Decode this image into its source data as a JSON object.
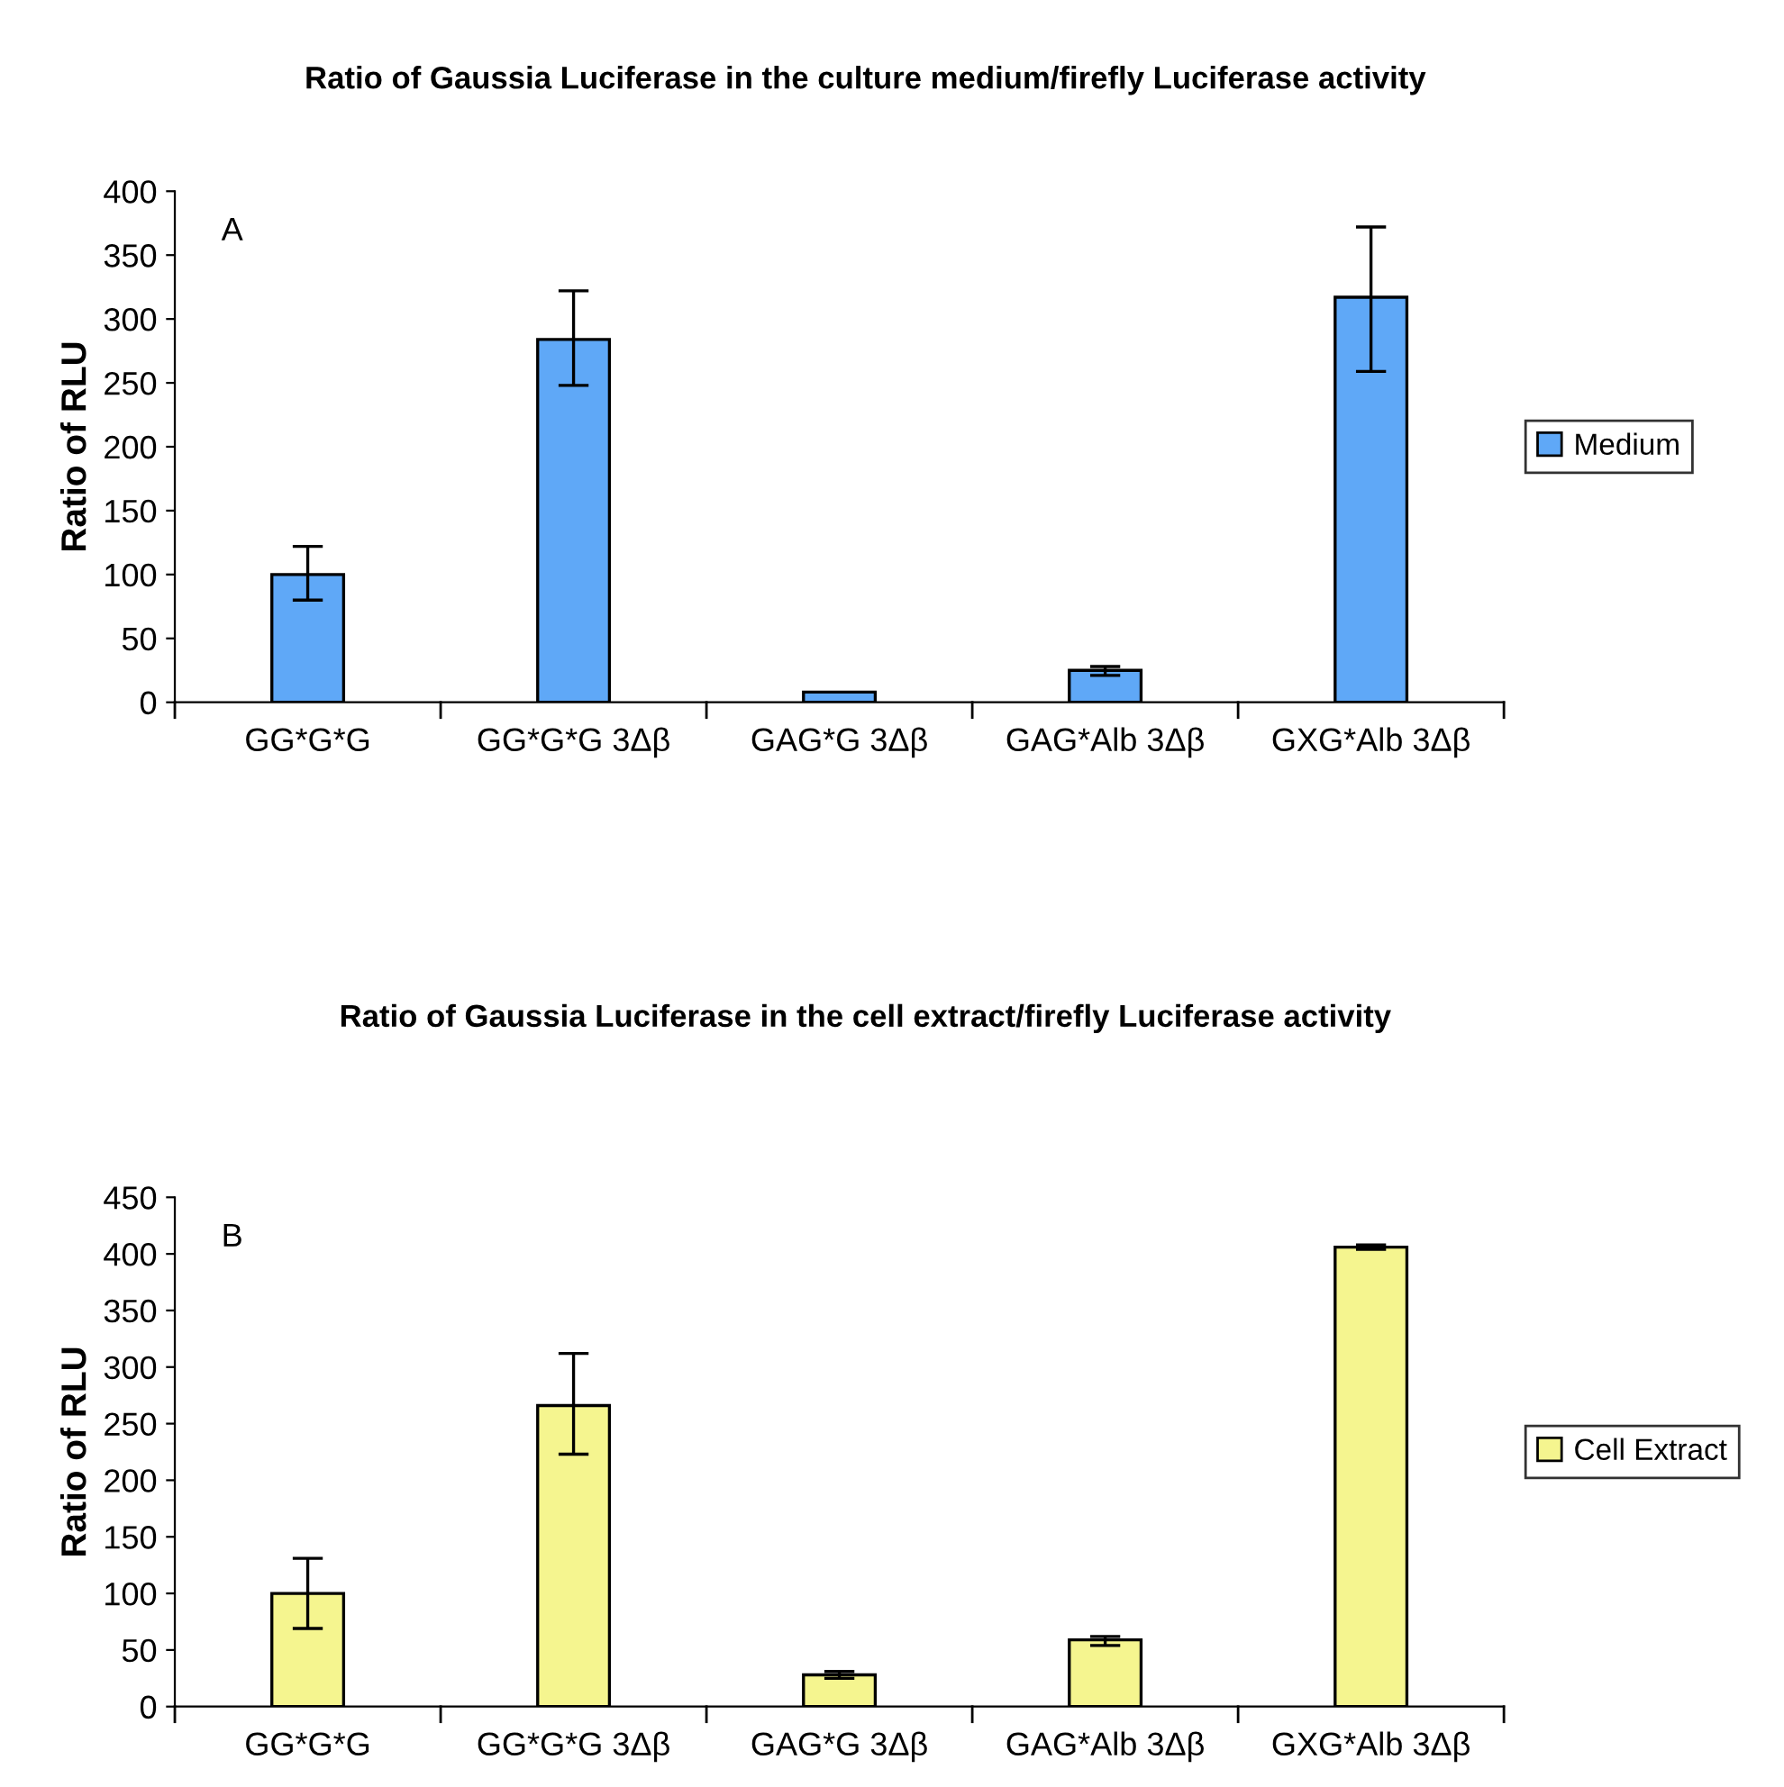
{
  "chart_data": [
    {
      "type": "bar",
      "title": "Ratio of Gaussia Luciferase in the culture medium/firefly Luciferase activity",
      "ylabel": "Ratio of RLU",
      "annotations": [
        "A"
      ],
      "categories": [
        "GG*G*G",
        "GG*G*G 3Δβ",
        "GAG*G 3Δβ",
        "GAG*Alb 3Δβ",
        "GXG*Alb 3Δβ"
      ],
      "series": [
        {
          "name": "Medium",
          "color": "#5fa8f7",
          "values": [
            100,
            284,
            8,
            25,
            317
          ],
          "errors": [
            [
              80,
              122
            ],
            [
              248,
              322
            ],
            null,
            [
              21,
              28
            ],
            [
              259,
              372
            ]
          ]
        }
      ],
      "ylim": [
        0,
        400
      ],
      "yticks": [
        0,
        50,
        100,
        150,
        200,
        250,
        300,
        350,
        400
      ],
      "grid": false,
      "legend": "right"
    },
    {
      "type": "bar",
      "title": "Ratio of Gaussia Luciferase in the cell extract/firefly Luciferase activity",
      "ylabel": "Ratio of RLU",
      "annotations": [
        "B"
      ],
      "categories": [
        "GG*G*G",
        "GG*G*G 3Δβ",
        "GAG*G 3Δβ",
        "GAG*Alb 3Δβ",
        "GXG*Alb 3Δβ"
      ],
      "series": [
        {
          "name": "Cell Extract",
          "color": "#f5f58f",
          "values": [
            100,
            266,
            28,
            59,
            406
          ],
          "errors": [
            [
              69,
              131
            ],
            [
              223,
              312
            ],
            [
              25,
              31
            ],
            [
              54,
              62
            ],
            [
              404,
              408
            ]
          ]
        }
      ],
      "ylim": [
        0,
        450
      ],
      "yticks": [
        0,
        50,
        100,
        150,
        200,
        250,
        300,
        350,
        400,
        450
      ],
      "grid": false,
      "legend": "right"
    }
  ]
}
